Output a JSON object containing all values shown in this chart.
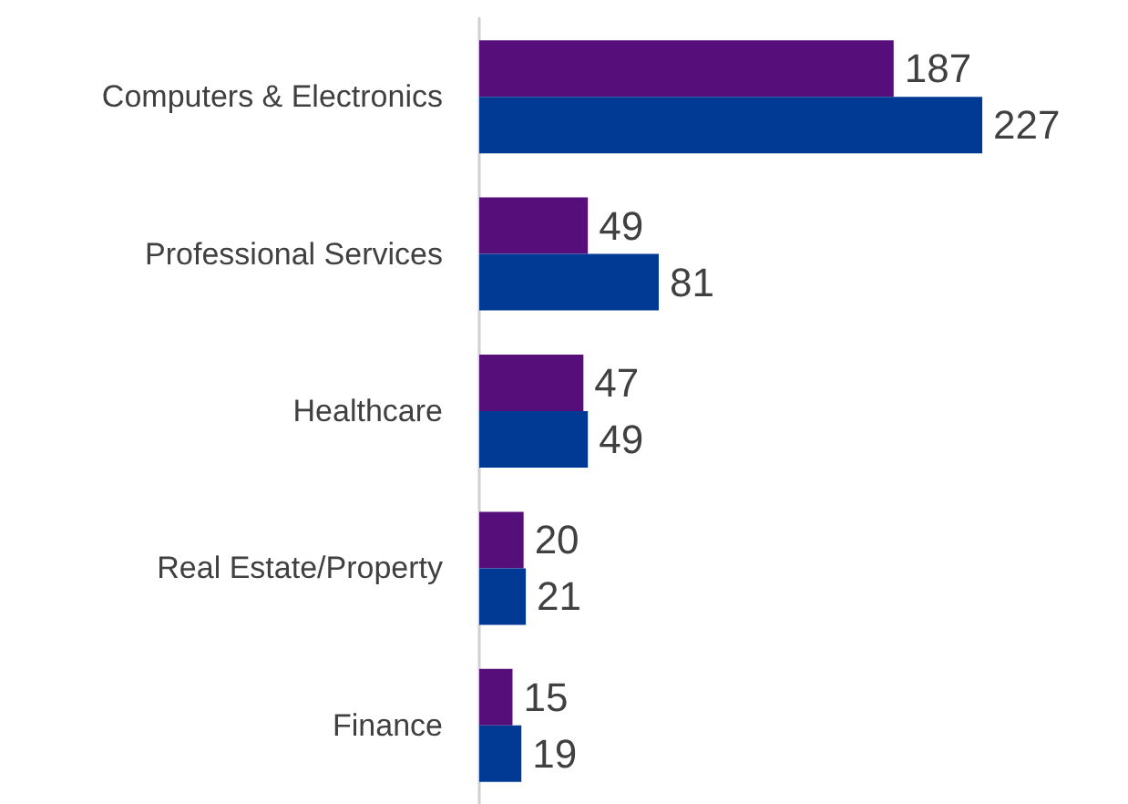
{
  "chart_data": {
    "type": "bar",
    "orientation": "horizontal",
    "categories": [
      "Computers & Electronics",
      "Professional Services",
      "Healthcare",
      "Real Estate/Property",
      "Finance"
    ],
    "series": [
      {
        "color": "#560e7a",
        "values": [
          187,
          49,
          47,
          20,
          15
        ]
      },
      {
        "color": "#003a94",
        "values": [
          227,
          81,
          49,
          21,
          19
        ]
      }
    ],
    "data_labels": true
  }
}
